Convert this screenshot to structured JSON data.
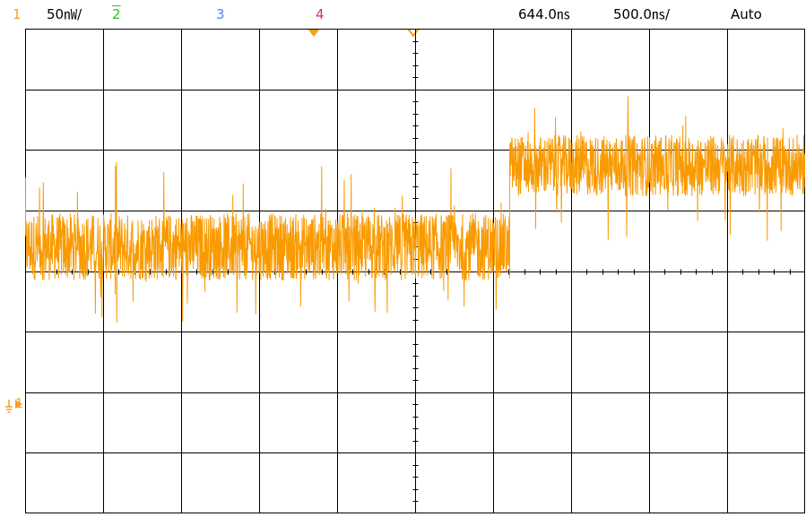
{
  "status_bar": {
    "ch1_number": "1",
    "ch1_scale": "50㎻/",
    "ch2_number": "2",
    "ch3_number": "3",
    "ch4_number": "4",
    "trigger_position": "644.0㎱",
    "timebase": "500.0㎱/",
    "trigger_mode": "Auto"
  },
  "channel_marker": {
    "label": "1"
  },
  "colors": {
    "ch1": "#f7a01e",
    "ch2": "#23c41f",
    "ch3": "#5a83e8",
    "ch4": "#e0238c",
    "grid": "#000000",
    "background": "#ffffff",
    "trace": "#f99a00"
  },
  "icons": {
    "trigger_level_marker": "orange-down-triangle",
    "time_reference_marker": "orange-open-triangle",
    "ground_marker": "ground-arrow-icon"
  },
  "chart_data": {
    "type": "line",
    "title": "",
    "xlabel": "",
    "ylabel": "",
    "x_unit": "ns",
    "y_unit": "mV",
    "x_divisions": 10,
    "y_divisions": 8,
    "xlim": [
      -4356,
      644
    ],
    "ylim": [
      -237,
      163
    ],
    "channel": "1",
    "series": [
      {
        "segments": [
          {
            "x_start": -4356,
            "x_end": -1250,
            "mean": -17,
            "band_low": -45,
            "band_high": 10
          },
          {
            "x_start": -1250,
            "x_end": 750,
            "mean": 50,
            "band_low": 20,
            "band_high": 70
          },
          {
            "x_start": 750,
            "x_end": 644,
            "mean": -17,
            "band_low": -45,
            "band_high": 10
          }
        ]
      }
    ]
  }
}
